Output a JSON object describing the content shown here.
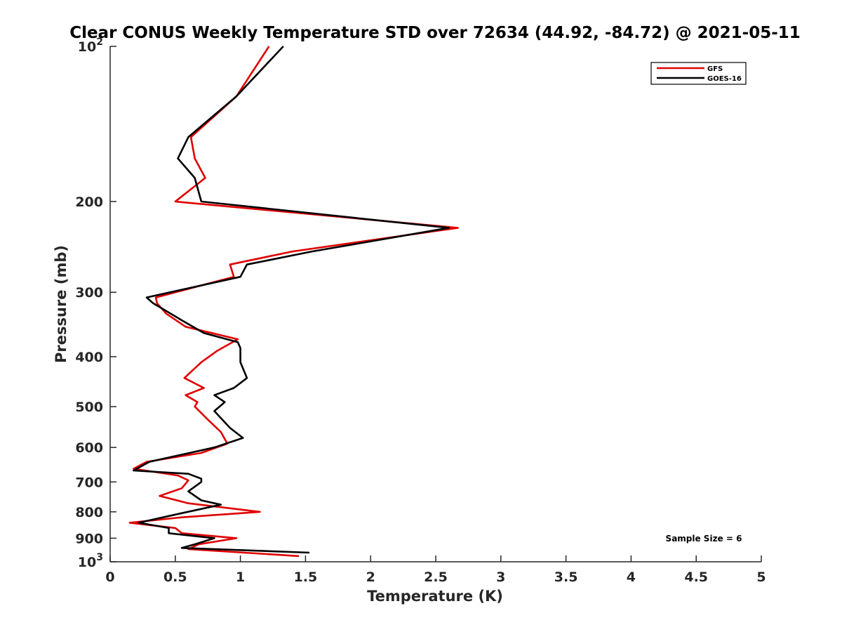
{
  "chart_data": {
    "type": "line",
    "title": "Clear CONUS Weekly Temperature STD over 72634 (44.92, -84.72) @ 2021-05-11",
    "xlabel": "Temperature (K)",
    "ylabel": "Pressure (mb)",
    "xlim": [
      0,
      5
    ],
    "ylim": [
      100,
      1000
    ],
    "y_scale": "log",
    "y_reversed": true,
    "grid": false,
    "legend_position": "top-right",
    "x_ticks": [
      "0",
      "0.5",
      "1",
      "1.5",
      "2",
      "2.5",
      "3",
      "3.5",
      "4",
      "4.5",
      "5"
    ],
    "y_ticks": [
      {
        "value": 100,
        "base": "10",
        "exp": "2"
      },
      {
        "value": 200,
        "label": "200"
      },
      {
        "value": 300,
        "label": "300"
      },
      {
        "value": 400,
        "label": "400"
      },
      {
        "value": 500,
        "label": "500"
      },
      {
        "value": 600,
        "label": "600"
      },
      {
        "value": 700,
        "label": "700"
      },
      {
        "value": 800,
        "label": "800"
      },
      {
        "value": 900,
        "label": "900"
      },
      {
        "value": 1000,
        "base": "10",
        "exp": "3"
      }
    ],
    "annotation": "Sample Size = 6",
    "series": [
      {
        "name": "GFS",
        "color": "#e00000",
        "points": [
          [
            1.22,
            100
          ],
          [
            0.97,
            125
          ],
          [
            0.62,
            150
          ],
          [
            0.65,
            165
          ],
          [
            0.73,
            180
          ],
          [
            0.5,
            200
          ],
          [
            2.67,
            225
          ],
          [
            1.4,
            250
          ],
          [
            0.92,
            265
          ],
          [
            0.95,
            280
          ],
          [
            0.35,
            307
          ],
          [
            0.36,
            315
          ],
          [
            0.43,
            330
          ],
          [
            0.58,
            350
          ],
          [
            0.98,
            370
          ],
          [
            0.82,
            390
          ],
          [
            0.7,
            410
          ],
          [
            0.57,
            440
          ],
          [
            0.72,
            460
          ],
          [
            0.58,
            475
          ],
          [
            0.67,
            490
          ],
          [
            0.65,
            500
          ],
          [
            0.75,
            530
          ],
          [
            0.85,
            560
          ],
          [
            0.9,
            590
          ],
          [
            0.7,
            615
          ],
          [
            0.28,
            640
          ],
          [
            0.18,
            660
          ],
          [
            0.52,
            680
          ],
          [
            0.6,
            695
          ],
          [
            0.55,
            720
          ],
          [
            0.38,
            745
          ],
          [
            0.6,
            770
          ],
          [
            1.15,
            800
          ],
          [
            0.55,
            820
          ],
          [
            0.15,
            840
          ],
          [
            0.5,
            860
          ],
          [
            0.55,
            880
          ],
          [
            0.97,
            900
          ],
          [
            0.68,
            925
          ],
          [
            0.6,
            945
          ],
          [
            1.45,
            975
          ]
        ]
      },
      {
        "name": "GOES-16",
        "color": "#000000",
        "points": [
          [
            1.33,
            100
          ],
          [
            0.97,
            125
          ],
          [
            0.6,
            150
          ],
          [
            0.52,
            165
          ],
          [
            0.65,
            180
          ],
          [
            0.7,
            200
          ],
          [
            2.6,
            225
          ],
          [
            1.55,
            250
          ],
          [
            1.05,
            265
          ],
          [
            1.0,
            280
          ],
          [
            0.28,
            307
          ],
          [
            0.33,
            315
          ],
          [
            0.55,
            340
          ],
          [
            0.72,
            360
          ],
          [
            0.98,
            375
          ],
          [
            1.0,
            385
          ],
          [
            1.0,
            410
          ],
          [
            1.05,
            440
          ],
          [
            0.95,
            460
          ],
          [
            0.8,
            475
          ],
          [
            0.88,
            490
          ],
          [
            0.8,
            510
          ],
          [
            0.92,
            550
          ],
          [
            1.02,
            575
          ],
          [
            0.8,
            600
          ],
          [
            0.3,
            640
          ],
          [
            0.18,
            665
          ],
          [
            0.6,
            675
          ],
          [
            0.7,
            690
          ],
          [
            0.7,
            700
          ],
          [
            0.6,
            730
          ],
          [
            0.7,
            760
          ],
          [
            0.85,
            775
          ],
          [
            0.5,
            810
          ],
          [
            0.22,
            840
          ],
          [
            0.45,
            860
          ],
          [
            0.45,
            880
          ],
          [
            0.8,
            900
          ],
          [
            0.65,
            925
          ],
          [
            0.55,
            940
          ],
          [
            1.53,
            960
          ]
        ]
      }
    ]
  }
}
